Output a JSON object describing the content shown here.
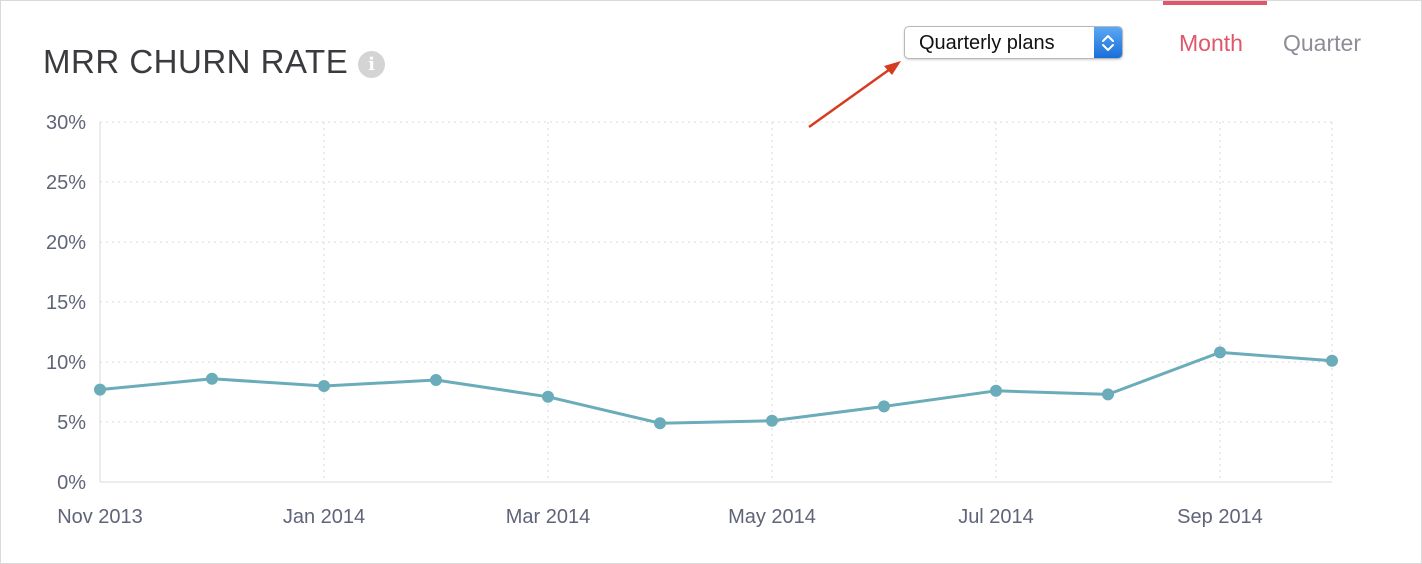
{
  "title": "MRR CHURN RATE",
  "info_icon": "info-icon",
  "plan_select": {
    "value": "Quarterly plans",
    "icon": "up-down-chevron-icon"
  },
  "period_tabs": [
    {
      "label": "Month",
      "active": true
    },
    {
      "label": "Quarter",
      "active": false
    }
  ],
  "annotation": {
    "type": "arrow",
    "color": "#d63a1f",
    "points_to": "plan_select"
  },
  "colors": {
    "accent": "#e0566a",
    "inactive_tab": "#8d8d98",
    "series": "#6aacb9",
    "axis_text": "#5f6478",
    "grid": "#d9d9d9",
    "arrow": "#d63a1f"
  },
  "chart_data": {
    "type": "line",
    "x": [
      "Nov 2013",
      "Dec 2013",
      "Jan 2014",
      "Feb 2014",
      "Mar 2014",
      "Apr 2014",
      "May 2014",
      "Jun 2014",
      "Jul 2014",
      "Aug 2014",
      "Sep 2014",
      "Oct 2014"
    ],
    "x_tick_labels": [
      "Nov 2013",
      "Jan 2014",
      "Mar 2014",
      "May 2014",
      "Jul 2014",
      "Sep 2014"
    ],
    "series": [
      {
        "values": [
          7.7,
          8.6,
          8.0,
          8.5,
          7.1,
          4.9,
          5.1,
          6.3,
          7.6,
          7.3,
          10.8,
          10.1
        ]
      }
    ],
    "y_ticks": [
      "0%",
      "5%",
      "10%",
      "15%",
      "20%",
      "25%",
      "30%"
    ],
    "ylim": [
      0,
      30
    ],
    "y_unit": "%",
    "grid": true,
    "markers": true
  }
}
